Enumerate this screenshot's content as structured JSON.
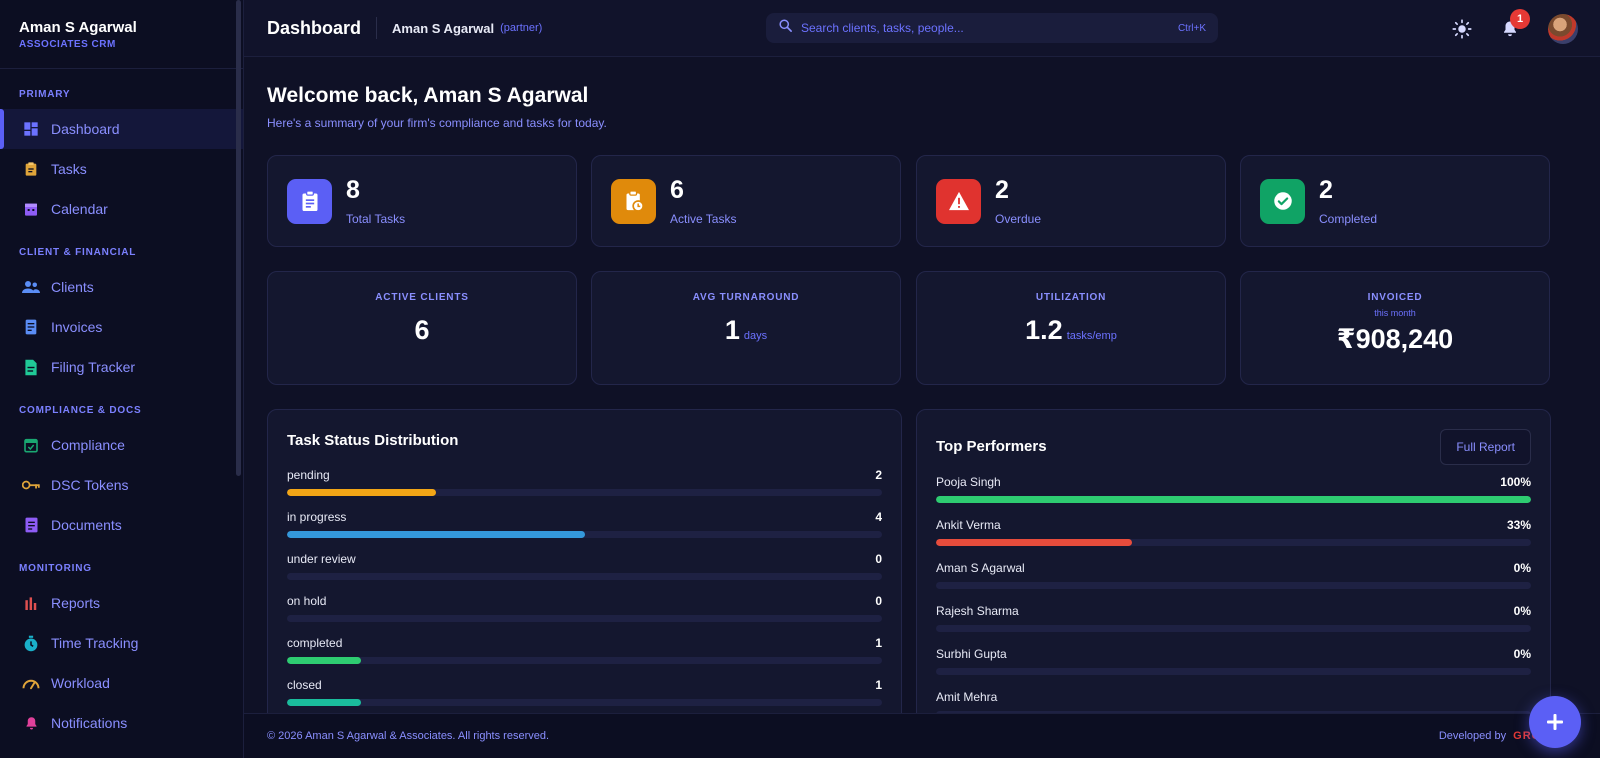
{
  "brand": {
    "name": "Aman S Agarwal",
    "subtitle": "ASSOCIATES CRM"
  },
  "sidebar": {
    "sections": [
      {
        "label": "PRIMARY",
        "items": [
          {
            "label": "Dashboard",
            "icon": "dashboard-icon",
            "active": true
          },
          {
            "label": "Tasks",
            "icon": "clipboard-icon"
          },
          {
            "label": "Calendar",
            "icon": "calendar-icon"
          }
        ]
      },
      {
        "label": "CLIENT & FINANCIAL",
        "items": [
          {
            "label": "Clients",
            "icon": "users-icon"
          },
          {
            "label": "Invoices",
            "icon": "invoice-icon"
          },
          {
            "label": "Filing Tracker",
            "icon": "file-icon"
          }
        ]
      },
      {
        "label": "COMPLIANCE & DOCS",
        "items": [
          {
            "label": "Compliance",
            "icon": "calendar-check-icon"
          },
          {
            "label": "DSC Tokens",
            "icon": "key-icon"
          },
          {
            "label": "Documents",
            "icon": "document-icon"
          }
        ]
      },
      {
        "label": "MONITORING",
        "items": [
          {
            "label": "Reports",
            "icon": "bar-chart-icon"
          },
          {
            "label": "Time Tracking",
            "icon": "timer-icon"
          },
          {
            "label": "Workload",
            "icon": "gauge-icon"
          },
          {
            "label": "Notifications",
            "icon": "bell-icon"
          }
        ]
      }
    ]
  },
  "header": {
    "title": "Dashboard",
    "user": "Aman S Agarwal",
    "role": "(partner)",
    "search_placeholder": "Search clients, tasks, people...",
    "search_shortcut": "Ctrl+K",
    "notification_count": "1"
  },
  "welcome": {
    "title": "Welcome back, Aman S Agarwal",
    "subtitle": "Here's a summary of your firm's compliance and tasks for today."
  },
  "stats": [
    {
      "value": "8",
      "label": "Total Tasks",
      "icon": "clipboard-list-icon",
      "color": "#5b5ff5"
    },
    {
      "value": "6",
      "label": "Active Tasks",
      "icon": "clipboard-clock-icon",
      "color": "#e08a0b"
    },
    {
      "value": "2",
      "label": "Overdue",
      "icon": "warning-icon",
      "color": "#e0332f"
    },
    {
      "value": "2",
      "label": "Completed",
      "icon": "check-circle-icon",
      "color": "#10a365"
    }
  ],
  "kpis": [
    {
      "label": "ACTIVE CLIENTS",
      "sub": "",
      "value": "6",
      "unit": ""
    },
    {
      "label": "AVG TURNAROUND",
      "sub": "",
      "value": "1",
      "unit": "days"
    },
    {
      "label": "UTILIZATION",
      "sub": "",
      "value": "1.2",
      "unit": "tasks/emp"
    },
    {
      "label": "INVOICED",
      "sub": "this month",
      "value": "₹908,240",
      "unit": ""
    }
  ],
  "task_status": {
    "title": "Task Status Distribution",
    "max": 8,
    "items": [
      {
        "label": "pending",
        "value": 2,
        "color": "#f2a516"
      },
      {
        "label": "in progress",
        "value": 4,
        "color": "#3498db"
      },
      {
        "label": "under review",
        "value": 0,
        "color": "#8e44ad"
      },
      {
        "label": "on hold",
        "value": 0,
        "color": "#7f8c8d"
      },
      {
        "label": "completed",
        "value": 1,
        "color": "#2ecc71"
      },
      {
        "label": "closed",
        "value": 1,
        "color": "#1abc9c"
      }
    ]
  },
  "top_performers": {
    "title": "Top Performers",
    "button": "Full Report",
    "items": [
      {
        "name": "Pooja Singh",
        "percent": 100,
        "label": "100%",
        "color": "#2ecc71"
      },
      {
        "name": "Ankit Verma",
        "percent": 33,
        "label": "33%",
        "color": "#e74c3c"
      },
      {
        "name": "Aman S Agarwal",
        "percent": 0,
        "label": "0%",
        "color": "#e74c3c"
      },
      {
        "name": "Rajesh Sharma",
        "percent": 0,
        "label": "0%",
        "color": "#e74c3c"
      },
      {
        "name": "Surbhi Gupta",
        "percent": 0,
        "label": "0%",
        "color": "#e74c3c"
      },
      {
        "name": "Amit Mehra",
        "percent": 0,
        "label": "",
        "color": "#e74c3c"
      }
    ]
  },
  "footer": {
    "copyright": "© 2026 Aman S Agarwal & Associates. All rights reserved.",
    "developed_by": "Developed by",
    "developer": "GROQBUS"
  }
}
